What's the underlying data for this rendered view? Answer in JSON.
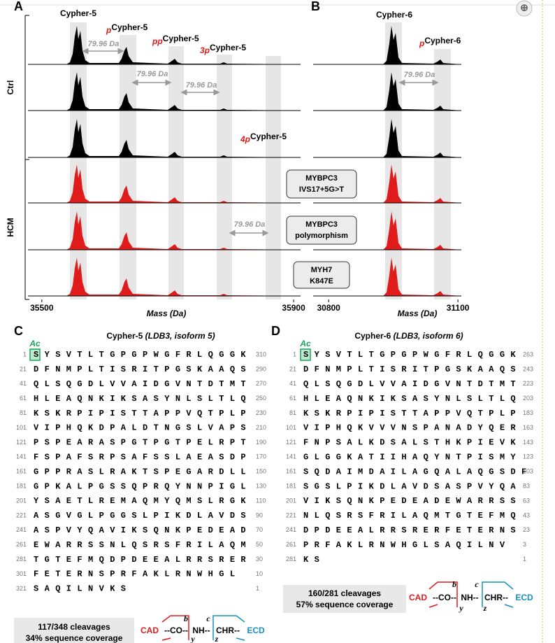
{
  "panel_a": {
    "label": "A",
    "groups": [
      "Ctrl",
      "HCM"
    ],
    "peaks": [
      {
        "name": "Cypher-5"
      },
      {
        "prefix": "p",
        "name": "Cypher-5"
      },
      {
        "prefix": "pp",
        "name": "Cypher-5"
      },
      {
        "prefix": "3p",
        "name": "Cypher-5"
      },
      {
        "prefix": "4p",
        "name": "Cypher-5"
      }
    ],
    "mass_shifts": [
      "79.96 Da",
      "79.96 Da",
      "79.96 Da",
      "79.96 Da"
    ],
    "samples": [
      [
        "MYBPC3",
        "IVS17+5G>T"
      ],
      [
        "MYBPC3",
        "polymorphism"
      ],
      [
        "MYH7",
        "K847E"
      ]
    ],
    "x_axis": {
      "title": "Mass (Da)",
      "xlim": [
        35478,
        35911
      ],
      "xticks": [
        35500,
        35900
      ]
    }
  },
  "panel_b": {
    "label": "B",
    "peaks": [
      {
        "name": "Cypher-6"
      },
      {
        "prefix": "p",
        "name": "Cypher-6"
      }
    ],
    "mass_shifts": [
      "79.96 Da"
    ],
    "x_axis": {
      "title": "Mass (Da)",
      "xlim": [
        30764,
        31108
      ],
      "xticks": [
        30800,
        31100
      ]
    }
  },
  "panel_c": {
    "label": "C",
    "title": "Cypher-5",
    "subtitle": "(LDB3, isoform 5)",
    "modification": "Ac",
    "rows": [
      {
        "start": 1,
        "sequence": "SYSVTLTGPGPWGFRLQGGK",
        "end": 310
      },
      {
        "start": 21,
        "sequence": "DFNMPLTISRITPGSKAAQS",
        "end": 290
      },
      {
        "start": 41,
        "sequence": "QLSQGDLVVAIDGVNTDTMT",
        "end": 270
      },
      {
        "start": 61,
        "sequence": "HLEAQNKIKSASYNLSLTLQ",
        "end": 250
      },
      {
        "start": 81,
        "sequence": "KSKRPIPISTTAPPVQTPLP",
        "end": 230
      },
      {
        "start": 101,
        "sequence": "VIPHQKDPALDTNGSLVAPS",
        "end": 210
      },
      {
        "start": 121,
        "sequence": "PSPEARASPGTPGTPELRPT",
        "end": 190
      },
      {
        "start": 141,
        "sequence": "FSPAFSRPSAFSSLAEASDP",
        "end": 170
      },
      {
        "start": 161,
        "sequence": "GPPRASLRAKTSPEGARDLL",
        "end": 150
      },
      {
        "start": 181,
        "sequence": "GPKALPGSSQPRQYNNPIGL",
        "end": 130
      },
      {
        "start": 201,
        "sequence": "YSAETLREMAQMYQMSLRGK",
        "end": 110
      },
      {
        "start": 221,
        "sequence": "ASGVGLPGGSLPIKDLAVDS",
        "end": 90
      },
      {
        "start": 241,
        "sequence": "ASPVYQAVIKSQNKPEDEAD",
        "end": 70
      },
      {
        "start": 261,
        "sequence": "EWARRSSNLQSRSFRILAQM",
        "end": 50
      },
      {
        "start": 281,
        "sequence": "TGTEFMQDPDEEALRRSRER",
        "end": 30
      },
      {
        "start": 301,
        "sequence": "FETERNSPRFAKLRNWHGL",
        "end": 10
      },
      {
        "start": 321,
        "sequence": "SAQILNVKS",
        "end": 1
      }
    ],
    "summary": [
      "117/348 cleavages",
      "34% sequence coverage"
    ],
    "scheme": [
      "CAD",
      "--CO--",
      "NH--",
      "CHR--",
      "ECD"
    ],
    "ions": [
      "b",
      "c",
      "y",
      "z"
    ]
  },
  "panel_d": {
    "label": "D",
    "title": "Cypher-6",
    "subtitle": "(LDB3, isoform 6)",
    "modification": "Ac",
    "rows": [
      {
        "start": 1,
        "sequence": "SYSVTLTGPGPWGFRLQGGK",
        "end": 263
      },
      {
        "start": 21,
        "sequence": "DFNMPLTISRITPGSKAAQS",
        "end": 243
      },
      {
        "start": 41,
        "sequence": "QLSQGDLVVAIDGVNTDTMT",
        "end": 223
      },
      {
        "start": 61,
        "sequence": "HLEAQNKIKSASYNLSLTLQ",
        "end": 203
      },
      {
        "start": 81,
        "sequence": "KSKRPIPISTTAPPVQTPLP",
        "end": 183
      },
      {
        "start": 101,
        "sequence": "VIPHQKVVVNSPANADYQER",
        "end": 163
      },
      {
        "start": 121,
        "sequence": "FNPSALKDSALSTHKPIEVK",
        "end": 143
      },
      {
        "start": 141,
        "sequence": "GLGGKATIIHAQYNTPISMY",
        "end": 123
      },
      {
        "start": 161,
        "sequence": "SQDAIMDAILAGQALAQGSDF",
        "end": 103
      },
      {
        "start": 181,
        "sequence": "SGSLPIKDLAVDSASPVYQA",
        "end": 83
      },
      {
        "start": 201,
        "sequence": "VIKSQNKPEDEADEWARRSS",
        "end": 63
      },
      {
        "start": 221,
        "sequence": "NLQSRSFRILAQMTGTEFMQ",
        "end": 43
      },
      {
        "start": 241,
        "sequence": "DPDEEALRRSRERFETERNS",
        "end": 23
      },
      {
        "start": 261,
        "sequence": "PRFAKLRNWHGLSAQILNV",
        "end": 3
      },
      {
        "start": 281,
        "sequence": "KS",
        "end": 1
      }
    ],
    "summary": [
      "160/281 cleavages",
      "57% sequence coverage"
    ],
    "scheme": [
      "CAD",
      "--CO--",
      "NH--",
      "CHR--",
      "ECD"
    ],
    "ions": [
      "b",
      "c",
      "y",
      "z"
    ]
  }
}
